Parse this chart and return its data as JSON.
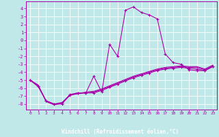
{
  "xlabel": "Windchill (Refroidissement éolien,°C)",
  "bg_color": "#c0e8e8",
  "line_color": "#aa00aa",
  "xlim": [
    -0.5,
    23.5
  ],
  "ylim": [
    -8.7,
    4.9
  ],
  "xticks": [
    0,
    1,
    2,
    3,
    4,
    5,
    6,
    7,
    8,
    9,
    10,
    11,
    12,
    13,
    14,
    15,
    16,
    17,
    18,
    19,
    20,
    21,
    22,
    23
  ],
  "yticks": [
    -8,
    -7,
    -6,
    -5,
    -4,
    -3,
    -2,
    -1,
    0,
    1,
    2,
    3,
    4
  ],
  "line1_x": [
    0,
    1,
    2,
    3,
    4,
    5,
    6,
    7,
    8,
    9,
    10,
    11,
    12,
    13,
    14,
    15,
    16,
    17,
    18,
    19,
    20,
    21,
    22,
    23
  ],
  "line1_y": [
    -5.0,
    -5.8,
    -7.6,
    -8.0,
    -8.0,
    -6.8,
    -6.6,
    -6.6,
    -4.5,
    -6.5,
    -0.5,
    -2.0,
    3.8,
    4.2,
    3.5,
    3.2,
    2.7,
    -1.7,
    -2.8,
    -3.0,
    -3.7,
    -3.8,
    -3.8,
    -3.3
  ],
  "line2_x": [
    0,
    1,
    2,
    3,
    4,
    5,
    6,
    7,
    8,
    9,
    10,
    11,
    12,
    13,
    14,
    15,
    16,
    17,
    18,
    19,
    20,
    21,
    22,
    23
  ],
  "line2_y": [
    -5.0,
    -5.8,
    -7.6,
    -8.0,
    -7.8,
    -6.9,
    -6.6,
    -6.6,
    -6.6,
    -6.3,
    -5.9,
    -5.5,
    -5.1,
    -4.7,
    -4.4,
    -4.1,
    -3.8,
    -3.6,
    -3.5,
    -3.4,
    -3.5,
    -3.6,
    -3.8,
    -3.3
  ],
  "line3_x": [
    0,
    1,
    2,
    3,
    4,
    5,
    6,
    7,
    8,
    9,
    10,
    11,
    12,
    13,
    14,
    15,
    16,
    17,
    18,
    19,
    20,
    21,
    22,
    23
  ],
  "line3_y": [
    -5.0,
    -5.6,
    -7.7,
    -8.1,
    -7.9,
    -6.9,
    -6.7,
    -6.6,
    -6.5,
    -6.2,
    -5.8,
    -5.4,
    -5.0,
    -4.6,
    -4.3,
    -4.0,
    -3.7,
    -3.5,
    -3.4,
    -3.3,
    -3.4,
    -3.4,
    -3.7,
    -3.2
  ],
  "line4_x": [
    0,
    1,
    2,
    3,
    4,
    5,
    6,
    7,
    8,
    9,
    10,
    11,
    12,
    13,
    14,
    15,
    16,
    17,
    18,
    19,
    20,
    21,
    22,
    23
  ],
  "line4_y": [
    -5.0,
    -5.7,
    -7.6,
    -8.0,
    -7.9,
    -6.8,
    -6.7,
    -6.5,
    -6.4,
    -6.1,
    -5.7,
    -5.3,
    -4.9,
    -4.5,
    -4.2,
    -3.9,
    -3.6,
    -3.4,
    -3.3,
    -3.2,
    -3.3,
    -3.3,
    -3.6,
    -3.1
  ]
}
